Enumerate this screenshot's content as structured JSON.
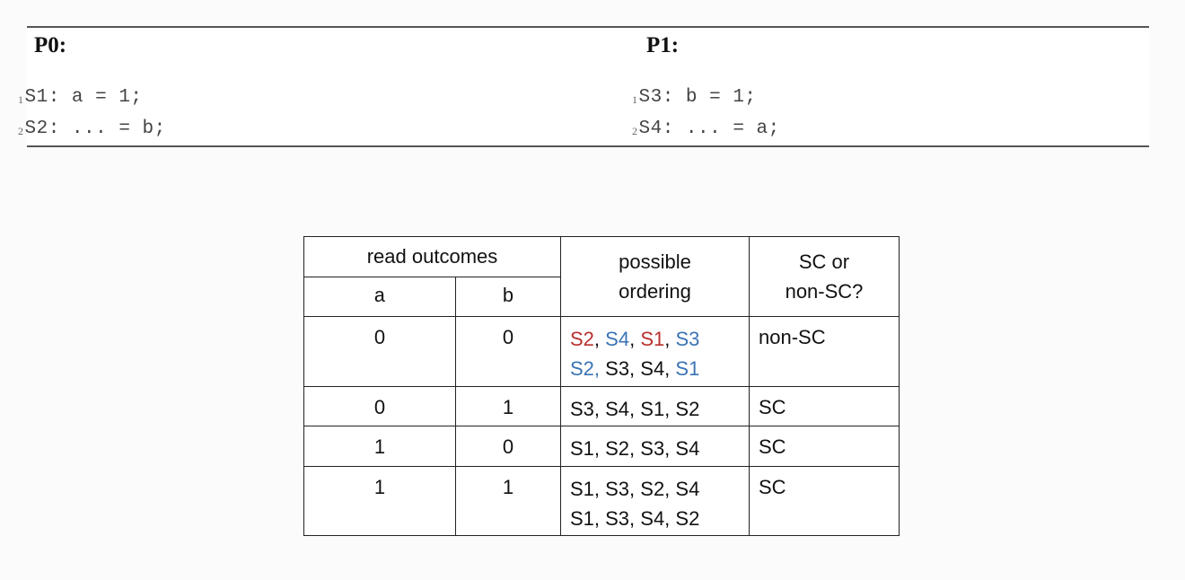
{
  "code": {
    "p0": {
      "title": "P0:",
      "lines": [
        {
          "num": "1",
          "text": "S1: a = 1;"
        },
        {
          "num": "2",
          "text": "S2: ... = b;"
        }
      ]
    },
    "p1": {
      "title": "P1:",
      "lines": [
        {
          "num": "1",
          "text": "S3: b = 1;"
        },
        {
          "num": "2",
          "text": "S4: ... = a;"
        }
      ]
    }
  },
  "table": {
    "headers": {
      "read_outcomes": "read outcomes",
      "a": "a",
      "b": "b",
      "possible_ordering_1": "possible",
      "possible_ordering_2": "ordering",
      "sc_1": "SC or",
      "sc_2": "non-SC?"
    },
    "rows": [
      {
        "a": "0",
        "b": "0",
        "ordering_line1": [
          {
            "t": "S2",
            "c": "red"
          },
          {
            "t": ", ",
            "c": ""
          },
          {
            "t": "S4",
            "c": "blue"
          },
          {
            "t": ", ",
            "c": ""
          },
          {
            "t": "S1",
            "c": "red"
          },
          {
            "t": ", ",
            "c": ""
          },
          {
            "t": "S3",
            "c": "blue"
          }
        ],
        "ordering_line2": [
          {
            "t": "S2,",
            "c": "blue"
          },
          {
            "t": " S3, S4, ",
            "c": ""
          },
          {
            "t": "S1",
            "c": "blue"
          }
        ],
        "sc": "non-SC"
      },
      {
        "a": "0",
        "b": "1",
        "ordering": [
          "S3, S4, S1, S2"
        ],
        "sc": "SC"
      },
      {
        "a": "1",
        "b": "0",
        "ordering": [
          "S1, S2, S3, S4"
        ],
        "sc": "SC"
      },
      {
        "a": "1",
        "b": "1",
        "ordering": [
          "S1, S3, S2, S4",
          "S1, S3, S4, S2"
        ],
        "sc": "SC"
      }
    ],
    "colors": {
      "red": "#b8312f",
      "blue": "#3a73b5"
    }
  }
}
